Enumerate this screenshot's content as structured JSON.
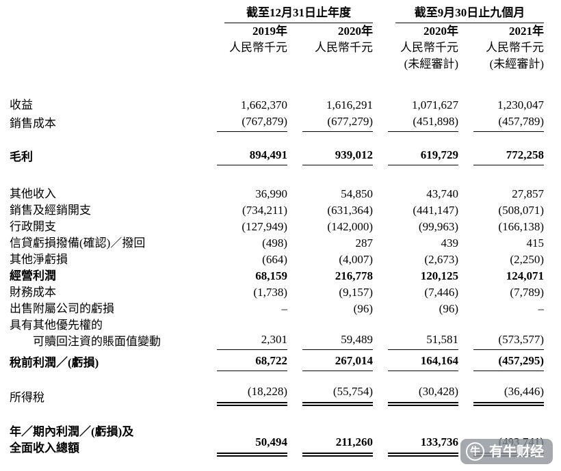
{
  "table": {
    "header": {
      "groups": [
        {
          "title": "截至12月31日止年度",
          "cols": [
            {
              "year": "2019年",
              "unit": "人民幣千元",
              "note": ""
            },
            {
              "year": "2020年",
              "unit": "人民幣千元",
              "note": ""
            }
          ]
        },
        {
          "title": "截至9月30日止九個月",
          "cols": [
            {
              "year": "2020年",
              "unit": "人民幣千元",
              "note": "(未經審計)"
            },
            {
              "year": "2021年",
              "unit": "人民幣千元",
              "note": "(未經審計)"
            }
          ]
        }
      ]
    },
    "rows": [
      {
        "label": "收益",
        "values": [
          "1,662,370",
          "1,616,291",
          "1,071,627",
          "1,230,047"
        ],
        "gap": 36
      },
      {
        "label": "銷售成本",
        "values": [
          "(767,879)",
          "(677,279)",
          "(451,898)",
          "(457,789)"
        ],
        "rule": "single"
      },
      {
        "label": "毛利",
        "values": [
          "894,491",
          "939,012",
          "619,729",
          "772,258"
        ],
        "bold": true,
        "rule": "single",
        "gap": 22
      },
      {
        "label": "其他收入",
        "values": [
          "36,990",
          "54,850",
          "43,740",
          "27,857"
        ],
        "gap": 30
      },
      {
        "label": "銷售及經銷開支",
        "values": [
          "(734,211)",
          "(631,364)",
          "(441,147)",
          "(508,071)"
        ]
      },
      {
        "label": "行政開支",
        "values": [
          "(127,949)",
          "(142,000)",
          "(99,963)",
          "(166,138)"
        ]
      },
      {
        "label": "信貸虧損撥備(確認)／撥回",
        "values": [
          "(498)",
          "287",
          "439",
          "415"
        ]
      },
      {
        "label": "其他淨虧損",
        "values": [
          "(664)",
          "(4,007)",
          "(2,673)",
          "(2,250)"
        ]
      },
      {
        "label": "經營利潤",
        "values": [
          "68,159",
          "216,778",
          "120,125",
          "124,071"
        ],
        "bold": true
      },
      {
        "label": "財務成本",
        "values": [
          "(1,738)",
          "(9,157)",
          "(7,446)",
          "(7,789)"
        ]
      },
      {
        "label": "出售附屬公司的虧損",
        "values": [
          "–",
          "(96)",
          "(96)",
          "–"
        ]
      },
      {
        "label": "具有其他優先權的",
        "label2": "可贖回注資的賬面值變動",
        "label2_indent": true,
        "values": [
          "2,301",
          "59,489",
          "51,581",
          "(573,577)"
        ],
        "rule": "single"
      },
      {
        "label": "稅前利潤／(虧損)",
        "values": [
          "68,722",
          "267,014",
          "164,164",
          "(457,295)"
        ],
        "bold": true,
        "rule": "single",
        "gap": 4
      },
      {
        "label": "所得稅",
        "values": [
          "(18,228)",
          "(55,754)",
          "(30,428)",
          "(36,446)"
        ],
        "rule": "double",
        "gap": 18
      },
      {
        "label": "年／期內利潤／(虧損)及",
        "label2": "全面收入總額",
        "values": [
          "50,494",
          "211,260",
          "133,736",
          "(493,741)"
        ],
        "bold": true,
        "rule": "double",
        "gap": 26
      }
    ]
  },
  "watermark": {
    "text": "有牛财经",
    "icon": "bull-icon",
    "logo_glyph": "牛"
  }
}
